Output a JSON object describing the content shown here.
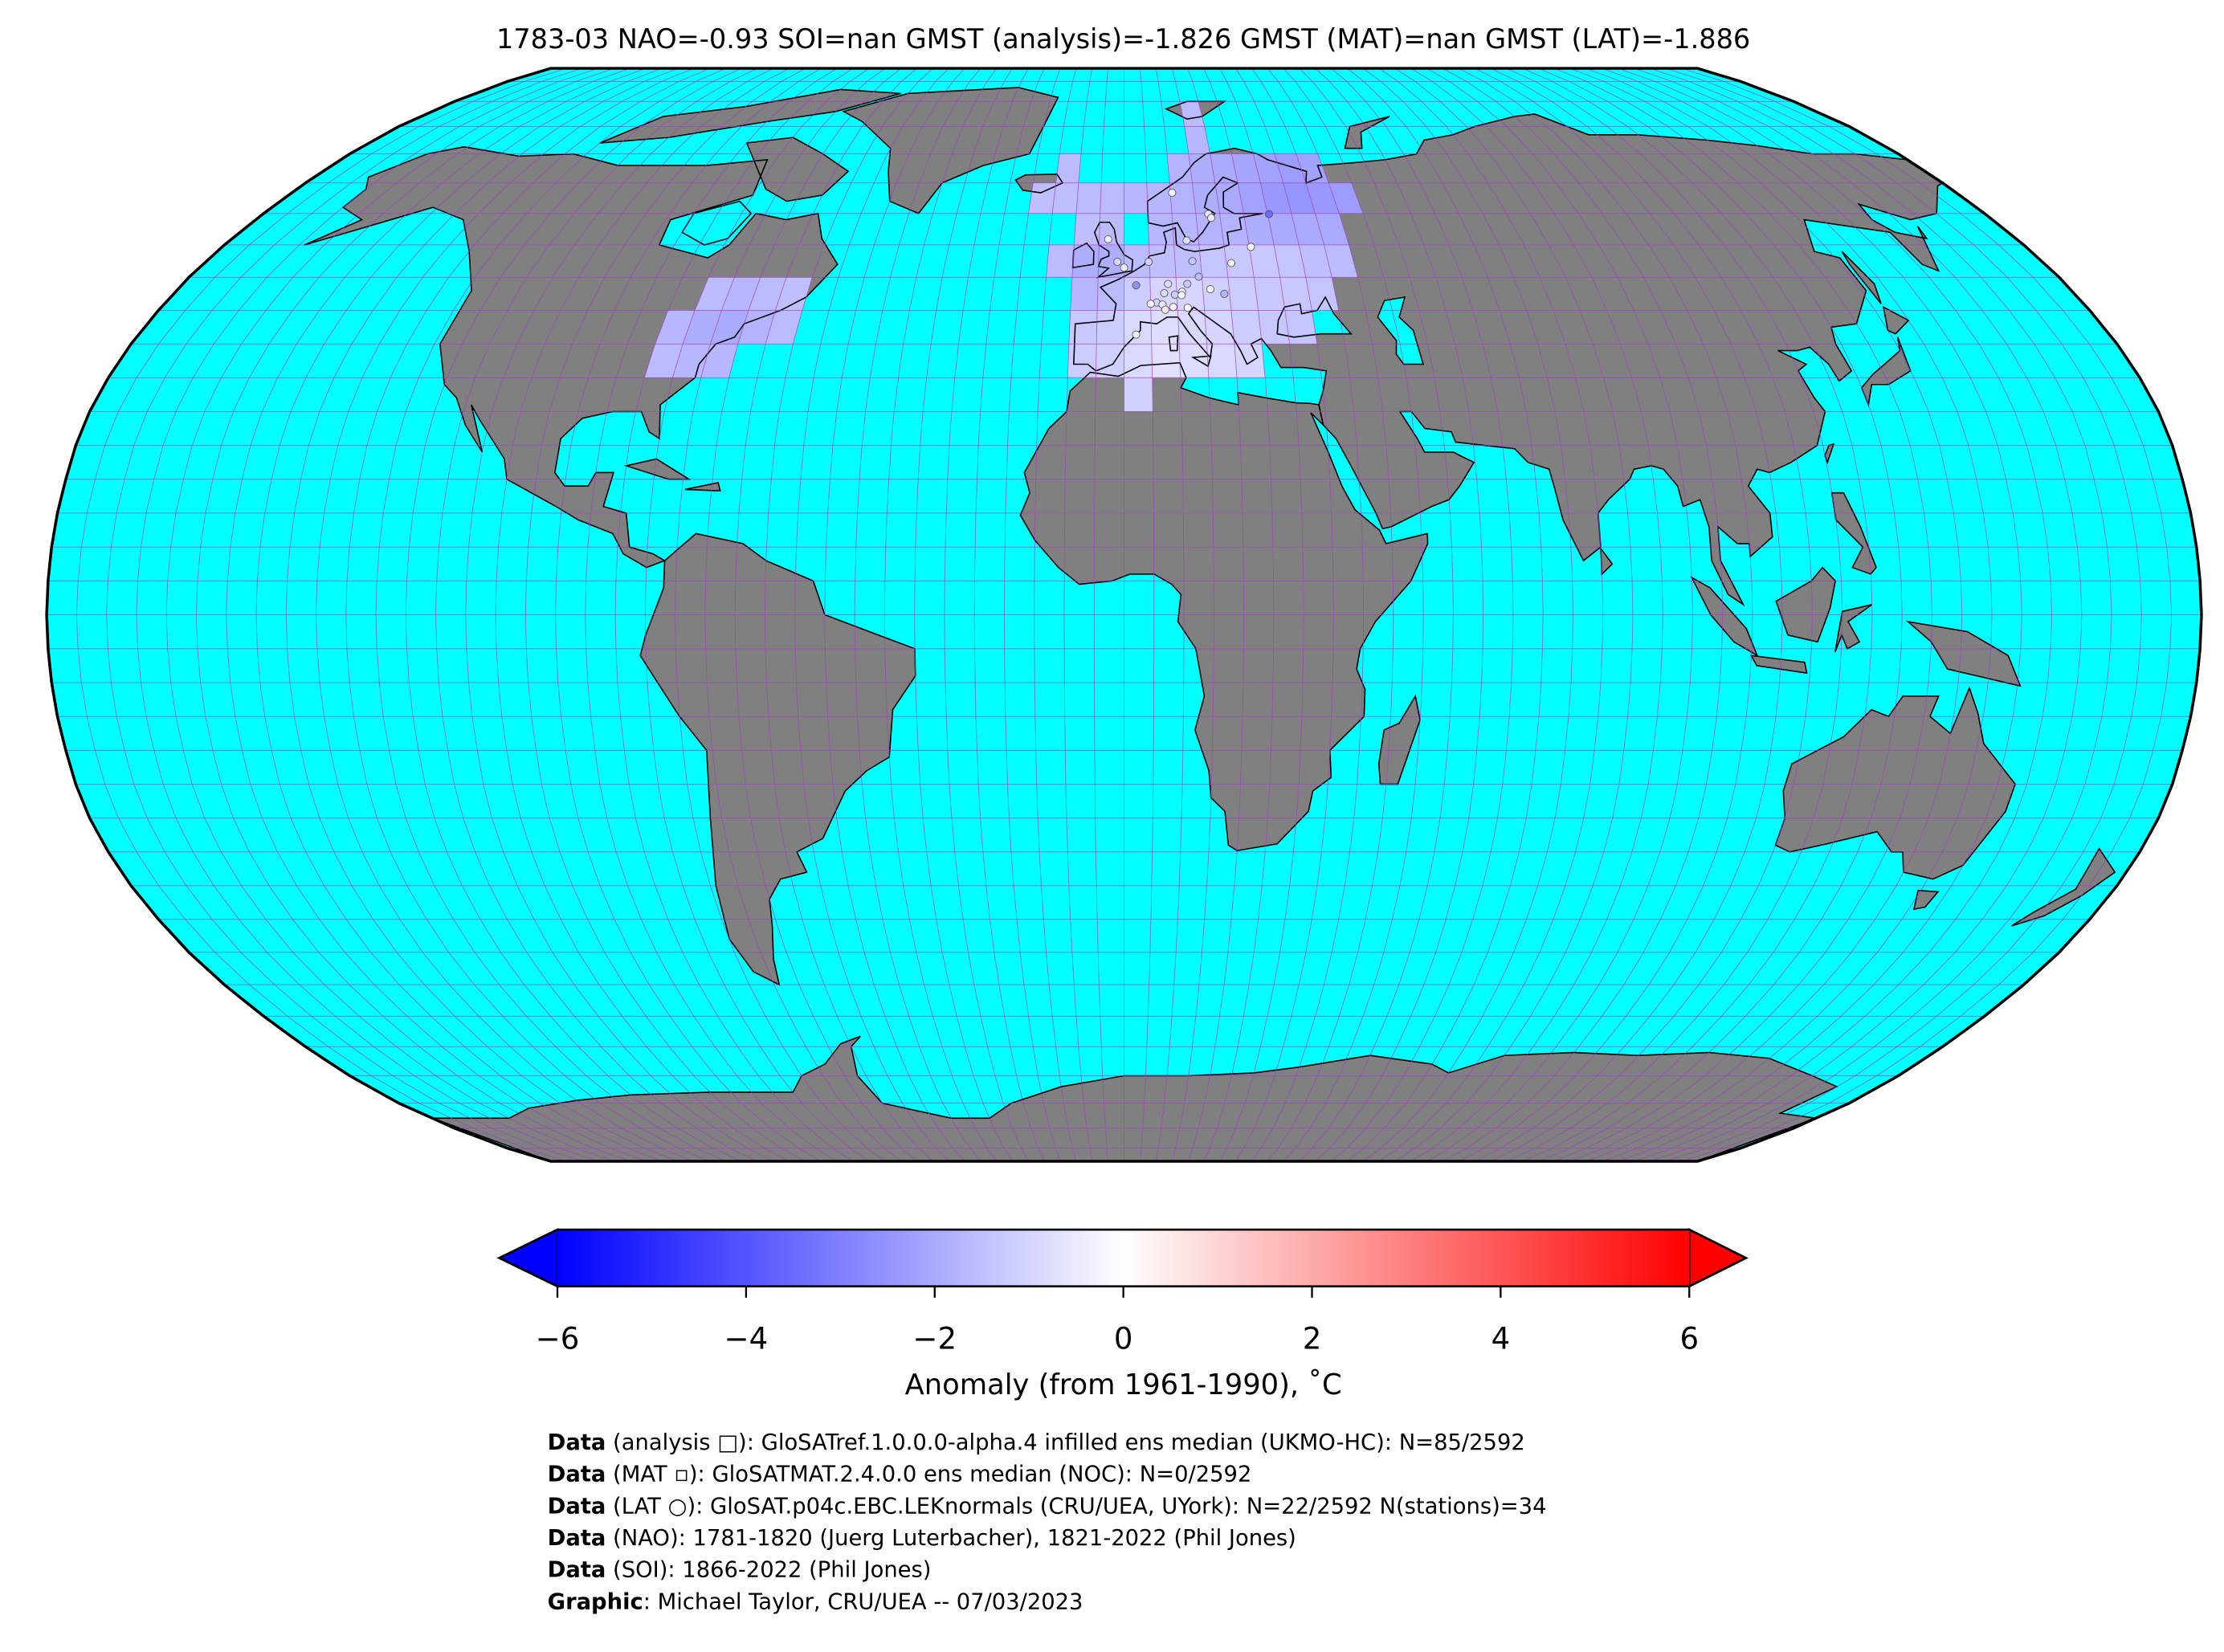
{
  "title": "1783-03 NAO=-0.93 SOI=nan GMST (analysis)=-1.826 GMST (MAT)=nan GMST (LAT)=-1.886",
  "colors": {
    "ocean": "#00ffff",
    "land": "#808080",
    "graticule": "#a040c0",
    "coastline": "#000000",
    "outline": "#000000"
  },
  "footer": [
    {
      "bold": "Data",
      "text": " (analysis □): GloSATref.1.0.0.0-alpha.4 infilled ens median (UKMO-HC): N=85/2592"
    },
    {
      "bold": "Data",
      "text": " (MAT ▫): GloSATMAT.2.4.0.0 ens median (NOC): N=0/2592"
    },
    {
      "bold": "Data",
      "text": " (LAT ○): GloSAT.p04c.EBC.LEKnormals (CRU/UEA, UYork): N=22/2592 N(stations)=34"
    },
    {
      "bold": "Data",
      "text": " (NAO): 1781-1820 (Juerg Luterbacher), 1821-2022 (Phil Jones)"
    },
    {
      "bold": "Data",
      "text": " (SOI): 1866-2022 (Phil Jones)"
    },
    {
      "bold": "Graphic",
      "text": ": Michael Taylor, CRU/UEA -- 07/03/2023"
    }
  ],
  "chart_data": {
    "type": "heatmap",
    "projection": "Robinson",
    "grid_resolution_deg": 5,
    "graticule": true,
    "title": "1783-03 NAO=-0.93 SOI=nan GMST (analysis)=-1.826 GMST (MAT)=nan GMST (LAT)=-1.886",
    "colormap": "bwr",
    "colorbar": {
      "range": [
        -6,
        6
      ],
      "extend": "both",
      "placement": "bottom",
      "ticks": [
        -6,
        -4,
        -2,
        0,
        2,
        4,
        6
      ],
      "tick_labels": [
        "−6",
        "−4",
        "−2",
        "0",
        "2",
        "4",
        "6"
      ],
      "label": "Anomaly (from 1961-1990), ˚C"
    },
    "grid_rows": [
      {
        "lat": 45,
        "lons": [
          -80,
          -75,
          -70,
          -65
        ],
        "values": [
          -1.6,
          -1.7,
          -1.6,
          -1.5
        ]
      },
      {
        "lat": 40,
        "lons": [
          -85,
          -80,
          -75,
          -70,
          -65
        ],
        "values": [
          -1.7,
          -1.9,
          -2.0,
          -1.8,
          -1.6
        ]
      },
      {
        "lat": 35,
        "lons": [
          -85,
          -80,
          -75
        ],
        "values": [
          -1.6,
          -1.7,
          -1.7
        ]
      },
      {
        "lat": 75,
        "lons": [
          15
        ],
        "values": [
          -1.6
        ]
      },
      {
        "lat": 70,
        "lons": [
          15
        ],
        "values": [
          -1.7
        ]
      },
      {
        "lat": 65,
        "lons": [
          -15,
          10,
          15,
          20,
          25,
          30,
          35,
          40
        ],
        "values": [
          -1.6,
          -1.8,
          -1.9,
          -2.0,
          -2.1,
          -2.2,
          -2.3,
          -2.2
        ]
      },
      {
        "lat": 60,
        "lons": [
          -20,
          -15,
          -10,
          -5,
          0,
          5,
          10,
          15,
          20,
          25,
          30,
          35,
          40,
          45
        ],
        "values": [
          -1.5,
          -1.5,
          -1.6,
          -1.6,
          -1.7,
          -1.7,
          -1.8,
          -1.9,
          -2.0,
          -2.2,
          -2.4,
          -2.5,
          -2.4,
          -2.3
        ]
      },
      {
        "lat": 55,
        "lons": [
          -10,
          -5,
          5,
          10,
          15,
          20,
          25,
          30,
          35,
          40
        ],
        "values": [
          -1.5,
          -1.6,
          -1.7,
          -1.7,
          -1.8,
          -1.8,
          -1.9,
          -2.0,
          -2.0,
          -2.0
        ]
      },
      {
        "lat": 50,
        "lons": [
          -15,
          -10,
          -5,
          0,
          5,
          10,
          15,
          20,
          25,
          30,
          35,
          40
        ],
        "values": [
          -1.6,
          -1.9,
          -1.9,
          -1.6,
          -1.5,
          -1.5,
          -1.4,
          -1.3,
          -1.3,
          -1.4,
          -1.5,
          -1.6
        ]
      },
      {
        "lat": 45,
        "lons": [
          -10,
          -5,
          0,
          5,
          10,
          15,
          20,
          25,
          30,
          35
        ],
        "values": [
          -1.7,
          -1.6,
          -1.2,
          -1.0,
          -1.0,
          -1.1,
          -1.2,
          -1.3,
          -1.3,
          -1.4
        ]
      },
      {
        "lat": 40,
        "lons": [
          -10,
          -5,
          0,
          5,
          10,
          15,
          20,
          25,
          30
        ],
        "values": [
          -1.3,
          -1.2,
          -0.9,
          -0.8,
          -0.9,
          -1.0,
          -1.2,
          -1.3,
          -1.4
        ]
      },
      {
        "lat": 35,
        "lons": [
          -10,
          -5,
          0,
          5,
          10,
          15,
          20
        ],
        "values": [
          -1.2,
          -1.1,
          -0.9,
          -0.7,
          -0.8,
          -0.9,
          -1.0
        ]
      },
      {
        "lat": 30,
        "lons": [
          0
        ],
        "values": [
          -1.1
        ]
      }
    ],
    "stations": [
      {
        "lat": 63.4,
        "lon": 10.4,
        "value": -0.2
      },
      {
        "lat": 59.9,
        "lon": 17.6,
        "value": -0.6
      },
      {
        "lat": 59.3,
        "lon": 18.1,
        "value": -0.4
      },
      {
        "lat": 59.9,
        "lon": 30.3,
        "value": -3.5
      },
      {
        "lat": 55.7,
        "lon": 12.6,
        "value": -0.8
      },
      {
        "lat": 55.9,
        "lon": -3.2,
        "value": -0.3
      },
      {
        "lat": 52.4,
        "lon": -1.3,
        "value": -1.0
      },
      {
        "lat": 51.5,
        "lon": 0.0,
        "value": -0.4
      },
      {
        "lat": 52.4,
        "lon": 4.8,
        "value": -1.1
      },
      {
        "lat": 52.5,
        "lon": 13.4,
        "value": -1.4
      },
      {
        "lat": 54.7,
        "lon": 25.3,
        "value": -0.1
      },
      {
        "lat": 52.2,
        "lon": 21.0,
        "value": 0.1
      },
      {
        "lat": 48.8,
        "lon": 2.3,
        "value": -2.6
      },
      {
        "lat": 50.1,
        "lon": 14.4,
        "value": -1.6
      },
      {
        "lat": 48.2,
        "lon": 16.4,
        "value": -0.2
      },
      {
        "lat": 47.5,
        "lon": 19.0,
        "value": -1.8
      },
      {
        "lat": 47.8,
        "lon": 11.0,
        "value": 0.3
      },
      {
        "lat": 49.0,
        "lon": 12.1,
        "value": -1.3
      },
      {
        "lat": 49.0,
        "lon": 8.4,
        "value": -0.8
      },
      {
        "lat": 47.6,
        "lon": 7.6,
        "value": -0.9
      },
      {
        "lat": 46.2,
        "lon": 6.1,
        "value": -1.0
      },
      {
        "lat": 45.9,
        "lon": 7.2,
        "value": -0.6
      },
      {
        "lat": 47.4,
        "lon": 9.6,
        "value": -1.2
      },
      {
        "lat": 47.3,
        "lon": 10.9,
        "value": 0.0
      },
      {
        "lat": 45.5,
        "lon": 9.2,
        "value": 0.2
      },
      {
        "lat": 45.1,
        "lon": 7.7,
        "value": 0.6
      },
      {
        "lat": 45.4,
        "lon": 11.9,
        "value": 0.1
      },
      {
        "lat": 41.4,
        "lon": 2.2,
        "value": -0.3
      },
      {
        "lat": 46.0,
        "lon": 5.0,
        "value": -0.2
      }
    ]
  }
}
